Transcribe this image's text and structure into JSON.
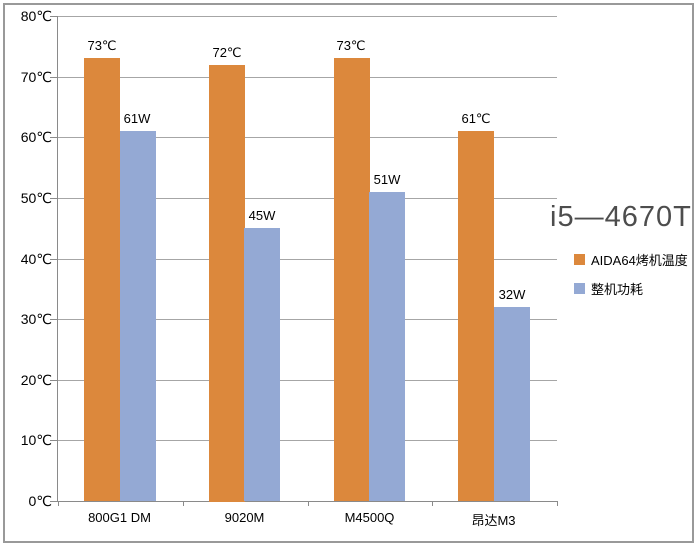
{
  "title": "i5—4670T",
  "chart_data": {
    "type": "bar",
    "title": "i5—4670T",
    "categories": [
      "800G1 DM",
      "9020M",
      "M4500Q",
      "昂达M3"
    ],
    "series": [
      {
        "name": "AIDA64烤机温度",
        "values": [
          73,
          72,
          73,
          61
        ],
        "value_labels": [
          "73℃",
          "72℃",
          "73℃",
          "61℃"
        ],
        "color": "#DC883C"
      },
      {
        "name": "整机功耗",
        "values": [
          61,
          45,
          51,
          32
        ],
        "value_labels": [
          "61W",
          "45W",
          "51W",
          "32W"
        ],
        "color": "#94A9D4"
      }
    ],
    "xlabel": "",
    "ylabel": "",
    "ylim": [
      0,
      80
    ],
    "ytick_step": 10,
    "ytick_labels": [
      "0℃",
      "10℃",
      "20℃",
      "30℃",
      "40℃",
      "50℃",
      "60℃",
      "70℃",
      "80℃"
    ],
    "grid": true,
    "legend_position": "right",
    "legend": [
      "AIDA64烤机温度",
      "整机功耗"
    ]
  },
  "colors": {
    "temperature_bar": "#DC883C",
    "power_bar": "#94A9D4",
    "gridline": "#A6A6A6",
    "axis": "#8A8A8A",
    "frame_border": "#999999",
    "title_text": "#4D4D4D",
    "label_text": "#000000",
    "background": "#FFFFFF"
  }
}
